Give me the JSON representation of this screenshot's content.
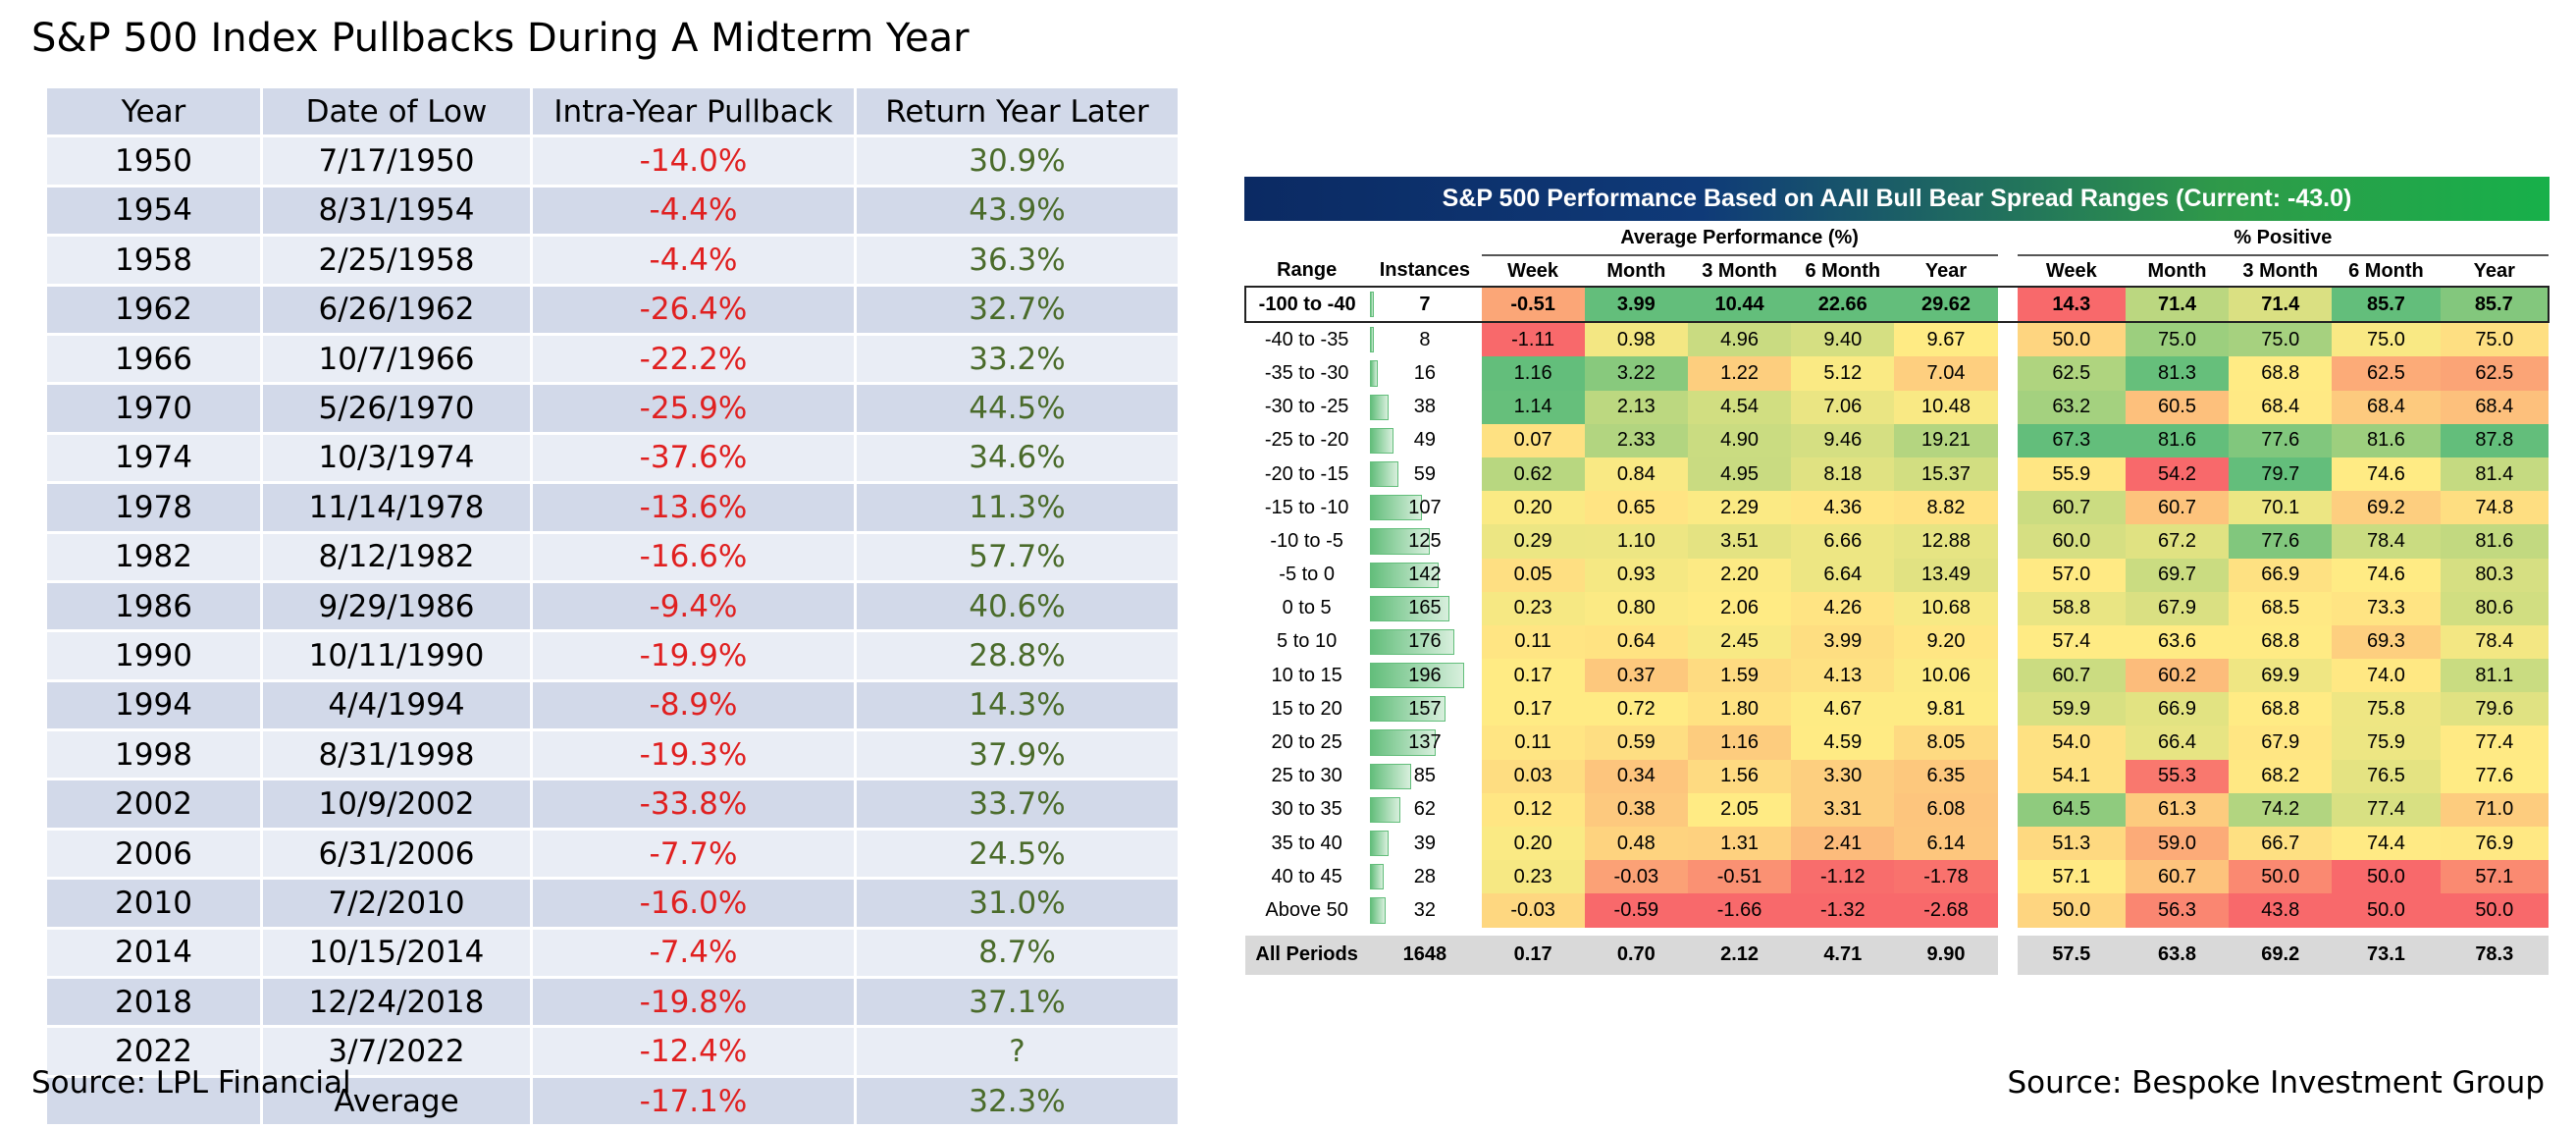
{
  "title": "S&P 500 Index Pullbacks During A Midterm Year",
  "source_left": "Source: LPL Financial",
  "source_right": "Source: Bespoke Investment Group",
  "colors": {
    "negative": "#e02020",
    "positive": "#4a6b2a",
    "row_dark": "#d2d9e9",
    "row_light": "#e9edf5"
  },
  "chart_data": [
    {
      "type": "table",
      "columns": [
        "Year",
        "Date of Low",
        "Intra-Year Pullback",
        "Return Year Later"
      ],
      "rows": [
        [
          "1950",
          "7/17/1950",
          "-14.0%",
          "30.9%"
        ],
        [
          "1954",
          "8/31/1954",
          "-4.4%",
          "43.9%"
        ],
        [
          "1958",
          "2/25/1958",
          "-4.4%",
          "36.3%"
        ],
        [
          "1962",
          "6/26/1962",
          "-26.4%",
          "32.7%"
        ],
        [
          "1966",
          "10/7/1966",
          "-22.2%",
          "33.2%"
        ],
        [
          "1970",
          "5/26/1970",
          "-25.9%",
          "44.5%"
        ],
        [
          "1974",
          "10/3/1974",
          "-37.6%",
          "34.6%"
        ],
        [
          "1978",
          "11/14/1978",
          "-13.6%",
          "11.3%"
        ],
        [
          "1982",
          "8/12/1982",
          "-16.6%",
          "57.7%"
        ],
        [
          "1986",
          "9/29/1986",
          "-9.4%",
          "40.6%"
        ],
        [
          "1990",
          "10/11/1990",
          "-19.9%",
          "28.8%"
        ],
        [
          "1994",
          "4/4/1994",
          "-8.9%",
          "14.3%"
        ],
        [
          "1998",
          "8/31/1998",
          "-19.3%",
          "37.9%"
        ],
        [
          "2002",
          "10/9/2002",
          "-33.8%",
          "33.7%"
        ],
        [
          "2006",
          "6/31/2006",
          "-7.7%",
          "24.5%"
        ],
        [
          "2010",
          "7/2/2010",
          "-16.0%",
          "31.0%"
        ],
        [
          "2014",
          "10/15/2014",
          "-7.4%",
          "8.7%"
        ],
        [
          "2018",
          "12/24/2018",
          "-19.8%",
          "37.1%"
        ],
        [
          "2022",
          "3/7/2022",
          "-12.4%",
          "?"
        ]
      ],
      "summary": [
        "",
        "Average",
        "-17.1%",
        "32.3%"
      ]
    },
    {
      "type": "heatmap",
      "title": "S&P 500 Performance Based on AAII Bull Bear Spread Ranges (Current: -43.0)",
      "groups": [
        "Average Performance (%)",
        "% Positive"
      ],
      "columns": [
        "Range",
        "Instances",
        "Week",
        "Month",
        "3 Month",
        "6 Month",
        "Year",
        "Week",
        "Month",
        "3 Month",
        "6 Month",
        "Year"
      ],
      "rows": [
        {
          "range": "-100 to -40",
          "instances": "7",
          "avg": [
            "-0.51",
            "3.99",
            "10.44",
            "22.66",
            "29.62"
          ],
          "pos": [
            "14.3",
            "71.4",
            "71.4",
            "85.7",
            "85.7"
          ]
        },
        {
          "range": "-40 to -35",
          "instances": "8",
          "avg": [
            "-1.11",
            "0.98",
            "4.96",
            "9.40",
            "9.67"
          ],
          "pos": [
            "50.0",
            "75.0",
            "75.0",
            "75.0",
            "75.0"
          ]
        },
        {
          "range": "-35 to -30",
          "instances": "16",
          "avg": [
            "1.16",
            "3.22",
            "1.22",
            "5.12",
            "7.04"
          ],
          "pos": [
            "62.5",
            "81.3",
            "68.8",
            "62.5",
            "62.5"
          ]
        },
        {
          "range": "-30 to -25",
          "instances": "38",
          "avg": [
            "1.14",
            "2.13",
            "4.54",
            "7.06",
            "10.48"
          ],
          "pos": [
            "63.2",
            "60.5",
            "68.4",
            "68.4",
            "68.4"
          ]
        },
        {
          "range": "-25 to -20",
          "instances": "49",
          "avg": [
            "0.07",
            "2.33",
            "4.90",
            "9.46",
            "19.21"
          ],
          "pos": [
            "67.3",
            "81.6",
            "77.6",
            "81.6",
            "87.8"
          ]
        },
        {
          "range": "-20 to -15",
          "instances": "59",
          "avg": [
            "0.62",
            "0.84",
            "4.95",
            "8.18",
            "15.37"
          ],
          "pos": [
            "55.9",
            "54.2",
            "79.7",
            "74.6",
            "81.4"
          ]
        },
        {
          "range": "-15 to -10",
          "instances": "107",
          "avg": [
            "0.20",
            "0.65",
            "2.29",
            "4.36",
            "8.82"
          ],
          "pos": [
            "60.7",
            "60.7",
            "70.1",
            "69.2",
            "74.8"
          ]
        },
        {
          "range": "-10 to -5",
          "instances": "125",
          "avg": [
            "0.29",
            "1.10",
            "3.51",
            "6.66",
            "12.88"
          ],
          "pos": [
            "60.0",
            "67.2",
            "77.6",
            "78.4",
            "81.6"
          ]
        },
        {
          "range": "-5 to 0",
          "instances": "142",
          "avg": [
            "0.05",
            "0.93",
            "2.20",
            "6.64",
            "13.49"
          ],
          "pos": [
            "57.0",
            "69.7",
            "66.9",
            "74.6",
            "80.3"
          ]
        },
        {
          "range": "0 to 5",
          "instances": "165",
          "avg": [
            "0.23",
            "0.80",
            "2.06",
            "4.26",
            "10.68"
          ],
          "pos": [
            "58.8",
            "67.9",
            "68.5",
            "73.3",
            "80.6"
          ]
        },
        {
          "range": "5 to 10",
          "instances": "176",
          "avg": [
            "0.11",
            "0.64",
            "2.45",
            "3.99",
            "9.20"
          ],
          "pos": [
            "57.4",
            "63.6",
            "68.8",
            "69.3",
            "78.4"
          ]
        },
        {
          "range": "10 to 15",
          "instances": "196",
          "avg": [
            "0.17",
            "0.37",
            "1.59",
            "4.13",
            "10.06"
          ],
          "pos": [
            "60.7",
            "60.2",
            "69.9",
            "74.0",
            "81.1"
          ]
        },
        {
          "range": "15 to 20",
          "instances": "157",
          "avg": [
            "0.17",
            "0.72",
            "1.80",
            "4.67",
            "9.81"
          ],
          "pos": [
            "59.9",
            "66.9",
            "68.8",
            "75.8",
            "79.6"
          ]
        },
        {
          "range": "20 to 25",
          "instances": "137",
          "avg": [
            "0.11",
            "0.59",
            "1.16",
            "4.59",
            "8.05"
          ],
          "pos": [
            "54.0",
            "66.4",
            "67.9",
            "75.9",
            "77.4"
          ]
        },
        {
          "range": "25 to 30",
          "instances": "85",
          "avg": [
            "0.03",
            "0.34",
            "1.56",
            "3.30",
            "6.35"
          ],
          "pos": [
            "54.1",
            "55.3",
            "68.2",
            "76.5",
            "77.6"
          ]
        },
        {
          "range": "30 to 35",
          "instances": "62",
          "avg": [
            "0.12",
            "0.38",
            "2.05",
            "3.31",
            "6.08"
          ],
          "pos": [
            "64.5",
            "61.3",
            "74.2",
            "77.4",
            "71.0"
          ]
        },
        {
          "range": "35 to 40",
          "instances": "39",
          "avg": [
            "0.20",
            "0.48",
            "1.31",
            "2.41",
            "6.14"
          ],
          "pos": [
            "51.3",
            "59.0",
            "66.7",
            "74.4",
            "76.9"
          ]
        },
        {
          "range": "40 to 45",
          "instances": "28",
          "avg": [
            "0.23",
            "-0.03",
            "-0.51",
            "-1.12",
            "-1.78"
          ],
          "pos": [
            "57.1",
            "60.7",
            "50.0",
            "50.0",
            "57.1"
          ]
        },
        {
          "range": "Above 50",
          "instances": "32",
          "avg": [
            "-0.03",
            "-0.59",
            "-1.66",
            "-1.32",
            "-2.68"
          ],
          "pos": [
            "50.0",
            "56.3",
            "43.8",
            "50.0",
            "50.0"
          ]
        }
      ],
      "total": {
        "range": "All Periods",
        "instances": "1648",
        "avg": [
          "0.17",
          "0.70",
          "2.12",
          "4.71",
          "9.90"
        ],
        "pos": [
          "57.5",
          "63.8",
          "69.2",
          "73.1",
          "78.3"
        ]
      }
    }
  ]
}
